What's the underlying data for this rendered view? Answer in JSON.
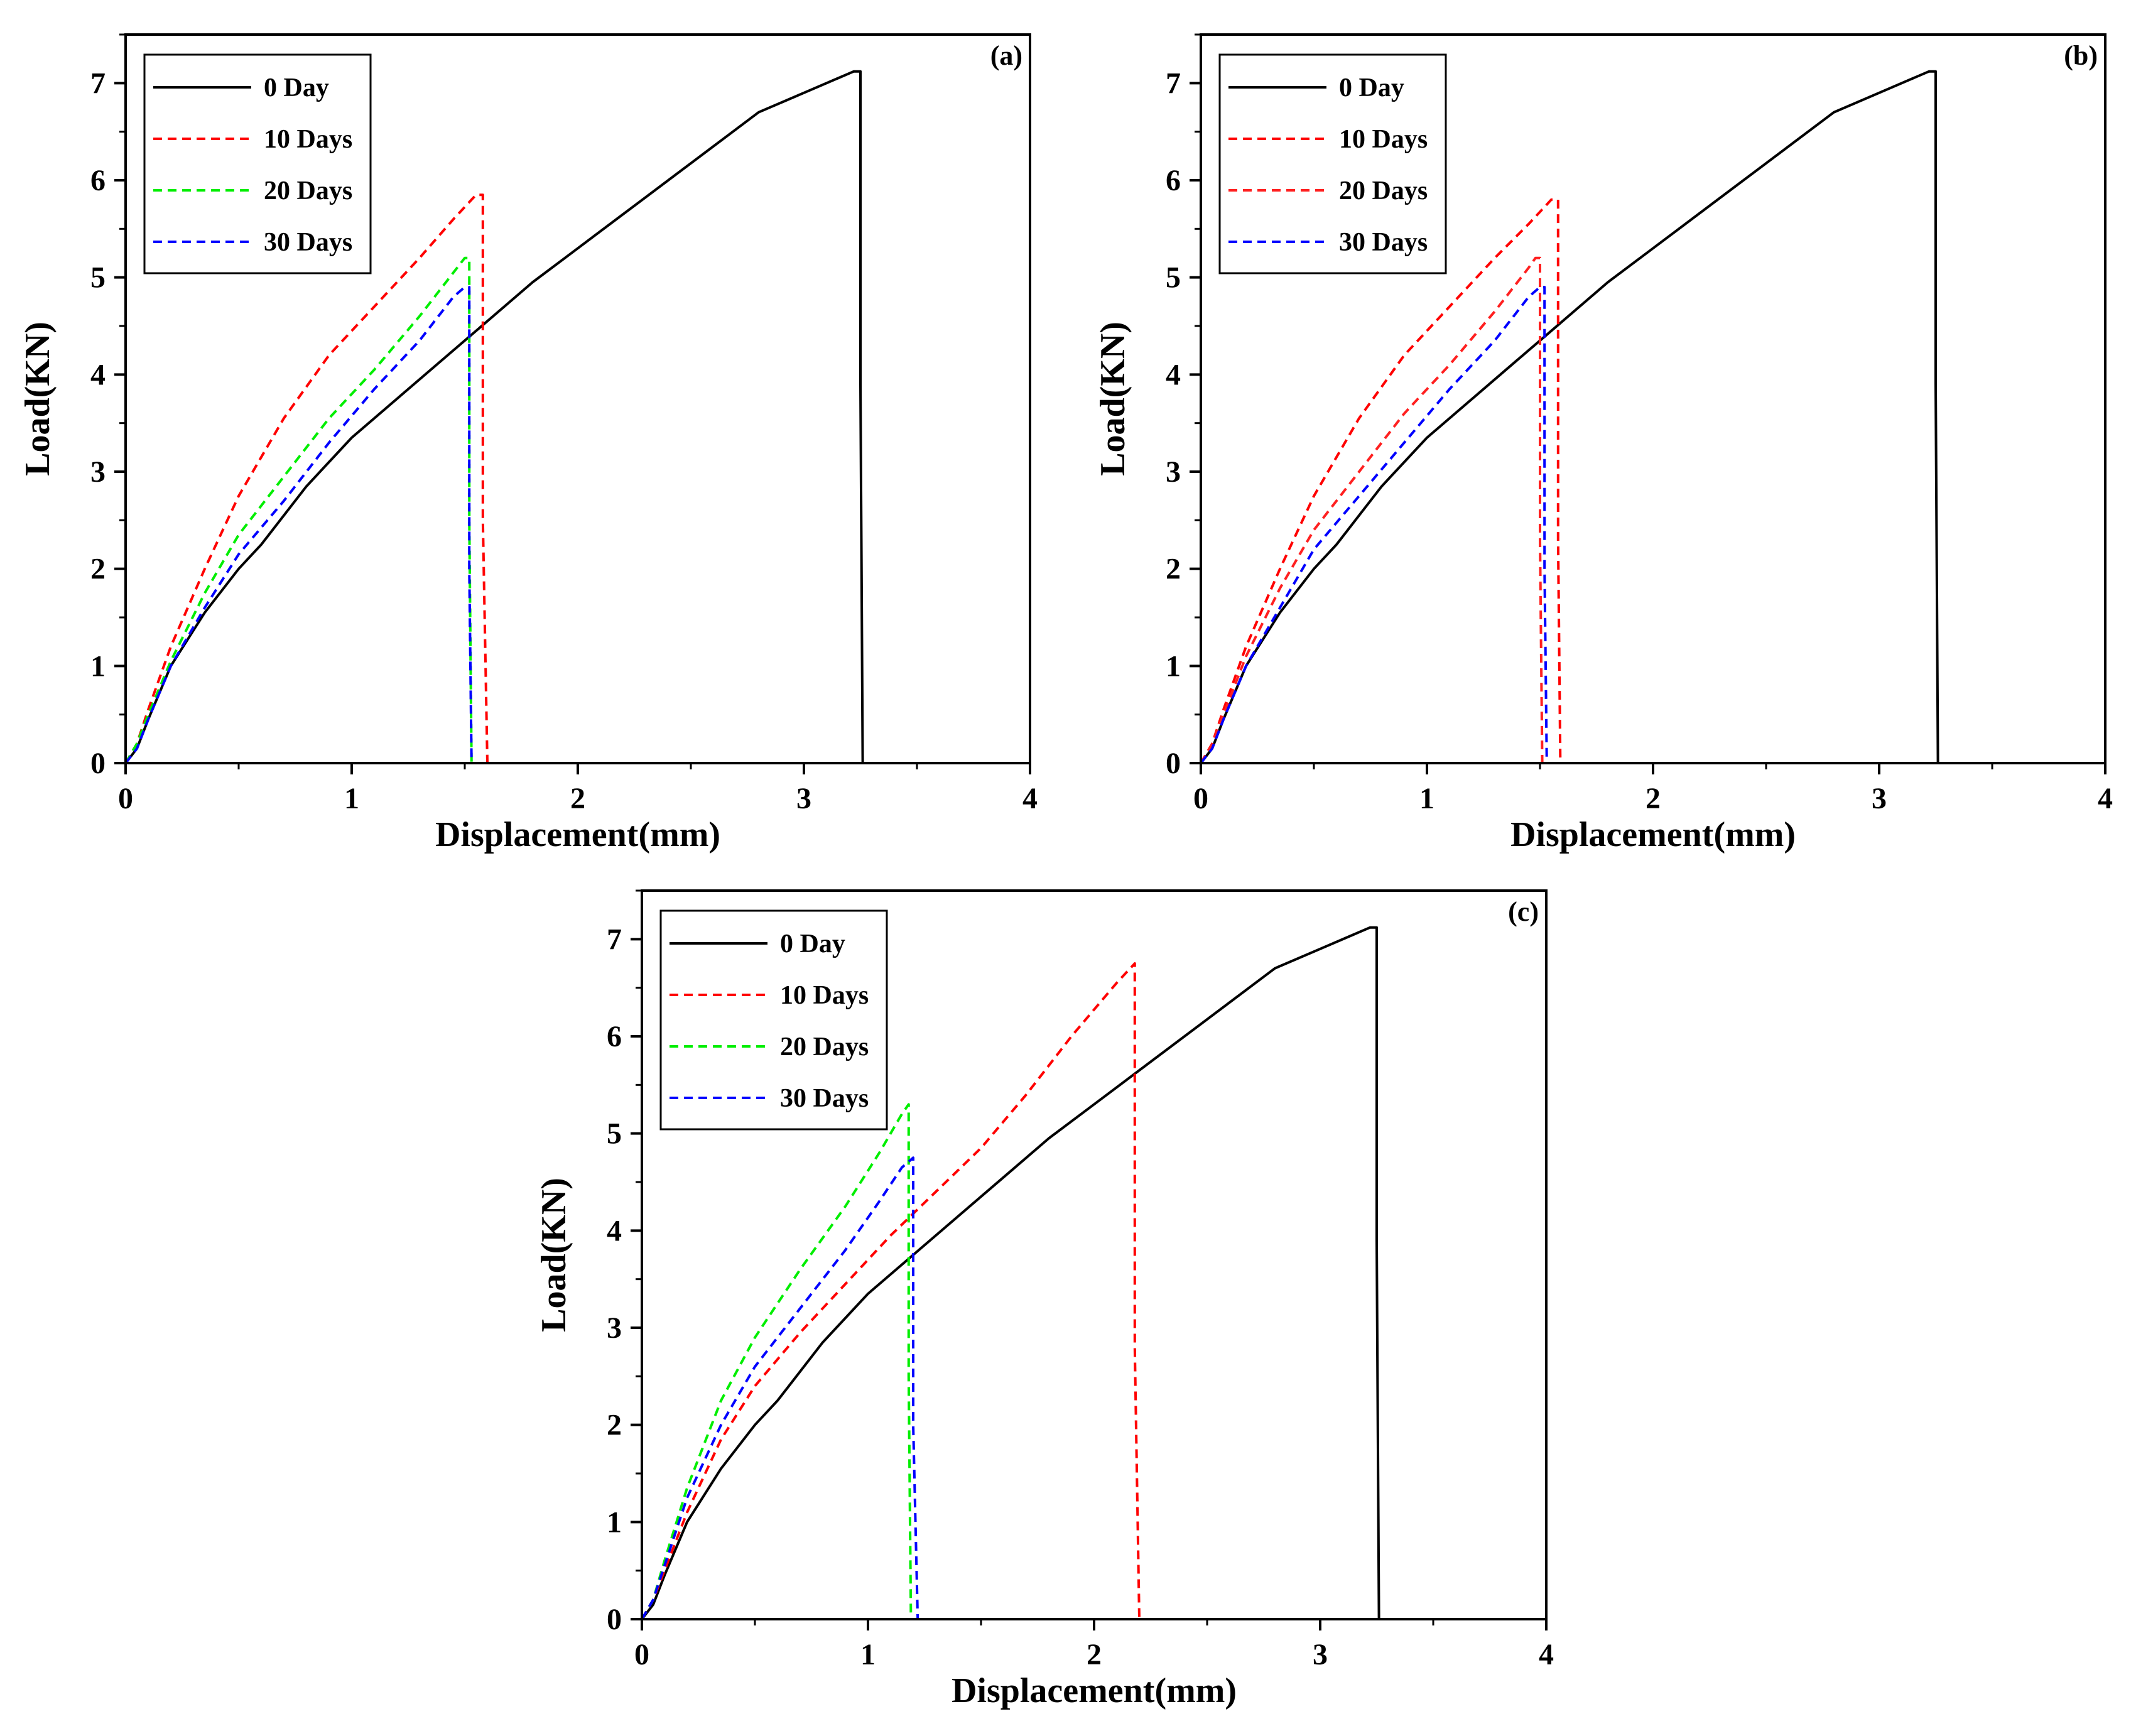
{
  "chart_data": [
    {
      "panel_label": "(a)",
      "type": "line",
      "xlabel": "Displacement(mm)",
      "ylabel": "Load(KN)",
      "xlim": [
        0,
        4
      ],
      "ylim": [
        0,
        7.5
      ],
      "xticks": [
        "0",
        "1",
        "2",
        "3",
        "4"
      ],
      "yticks": [
        "0",
        "1",
        "2",
        "3",
        "4",
        "5",
        "6",
        "7"
      ],
      "legend_position": "top-left",
      "series": [
        {
          "name": "0 Day",
          "color": "#000000",
          "dashed": false,
          "points": [
            [
              0,
              0
            ],
            [
              0.05,
              0.15
            ],
            [
              0.1,
              0.45
            ],
            [
              0.2,
              1.0
            ],
            [
              0.35,
              1.55
            ],
            [
              0.5,
              2.0
            ],
            [
              0.6,
              2.25
            ],
            [
              0.8,
              2.85
            ],
            [
              1.0,
              3.35
            ],
            [
              1.2,
              3.75
            ],
            [
              1.4,
              4.15
            ],
            [
              1.6,
              4.55
            ],
            [
              1.8,
              4.95
            ],
            [
              2.0,
              5.3
            ],
            [
              2.2,
              5.65
            ],
            [
              2.4,
              6.0
            ],
            [
              2.6,
              6.35
            ],
            [
              2.8,
              6.7
            ],
            [
              3.0,
              6.9
            ],
            [
              3.15,
              7.05
            ],
            [
              3.22,
              7.12
            ],
            [
              3.25,
              7.12
            ],
            [
              3.25,
              3.9
            ],
            [
              3.26,
              0
            ]
          ]
        },
        {
          "name": "10 Days",
          "color": "#ff0000",
          "dashed": true,
          "points": [
            [
              0,
              0
            ],
            [
              0.05,
              0.2
            ],
            [
              0.1,
              0.55
            ],
            [
              0.2,
              1.2
            ],
            [
              0.35,
              2.0
            ],
            [
              0.5,
              2.75
            ],
            [
              0.7,
              3.55
            ],
            [
              0.9,
              4.2
            ],
            [
              1.1,
              4.7
            ],
            [
              1.3,
              5.2
            ],
            [
              1.45,
              5.6
            ],
            [
              1.55,
              5.85
            ],
            [
              1.58,
              5.85
            ],
            [
              1.58,
              2.5
            ],
            [
              1.6,
              0
            ],
            [
              1.72,
              0
            ]
          ]
        },
        {
          "name": "20 Days",
          "color": "#00ee00",
          "dashed": true,
          "points": [
            [
              0,
              0
            ],
            [
              0.05,
              0.2
            ],
            [
              0.1,
              0.5
            ],
            [
              0.2,
              1.05
            ],
            [
              0.35,
              1.75
            ],
            [
              0.5,
              2.35
            ],
            [
              0.7,
              2.95
            ],
            [
              0.9,
              3.55
            ],
            [
              1.1,
              4.05
            ],
            [
              1.3,
              4.6
            ],
            [
              1.45,
              5.05
            ],
            [
              1.5,
              5.2
            ],
            [
              1.52,
              5.2
            ],
            [
              1.52,
              2.5
            ],
            [
              1.53,
              0
            ]
          ]
        },
        {
          "name": "30 Days",
          "color": "#0000ff",
          "dashed": true,
          "points": [
            [
              0,
              0
            ],
            [
              0.05,
              0.15
            ],
            [
              0.1,
              0.45
            ],
            [
              0.2,
              1.0
            ],
            [
              0.35,
              1.6
            ],
            [
              0.5,
              2.15
            ],
            [
              0.7,
              2.7
            ],
            [
              0.9,
              3.3
            ],
            [
              1.1,
              3.85
            ],
            [
              1.3,
              4.35
            ],
            [
              1.45,
              4.8
            ],
            [
              1.5,
              4.9
            ],
            [
              1.52,
              4.9
            ],
            [
              1.52,
              2.0
            ],
            [
              1.53,
              0
            ]
          ]
        }
      ]
    },
    {
      "panel_label": "(b)",
      "type": "line",
      "xlabel": "Displacement(mm)",
      "ylabel": "Load(KN)",
      "xlim": [
        0,
        4
      ],
      "ylim": [
        0,
        7.5
      ],
      "xticks": [
        "0",
        "1",
        "2",
        "3",
        "4"
      ],
      "yticks": [
        "0",
        "1",
        "2",
        "3",
        "4",
        "5",
        "6",
        "7"
      ],
      "legend_position": "top-left",
      "series": [
        {
          "name": "0 Day",
          "color": "#000000",
          "dashed": false,
          "points": [
            [
              0,
              0
            ],
            [
              0.05,
              0.15
            ],
            [
              0.1,
              0.45
            ],
            [
              0.2,
              1.0
            ],
            [
              0.35,
              1.55
            ],
            [
              0.5,
              2.0
            ],
            [
              0.6,
              2.25
            ],
            [
              0.8,
              2.85
            ],
            [
              1.0,
              3.35
            ],
            [
              1.2,
              3.75
            ],
            [
              1.4,
              4.15
            ],
            [
              1.6,
              4.55
            ],
            [
              1.8,
              4.95
            ],
            [
              2.0,
              5.3
            ],
            [
              2.2,
              5.65
            ],
            [
              2.4,
              6.0
            ],
            [
              2.6,
              6.35
            ],
            [
              2.8,
              6.7
            ],
            [
              3.0,
              6.9
            ],
            [
              3.15,
              7.05
            ],
            [
              3.22,
              7.12
            ],
            [
              3.25,
              7.12
            ],
            [
              3.25,
              3.9
            ],
            [
              3.26,
              0
            ]
          ]
        },
        {
          "name": "10 Days",
          "color": "#ff0000",
          "dashed": true,
          "points": [
            [
              0,
              0
            ],
            [
              0.05,
              0.2
            ],
            [
              0.1,
              0.55
            ],
            [
              0.2,
              1.2
            ],
            [
              0.35,
              2.0
            ],
            [
              0.5,
              2.75
            ],
            [
              0.7,
              3.55
            ],
            [
              0.9,
              4.2
            ],
            [
              1.1,
              4.7
            ],
            [
              1.3,
              5.2
            ],
            [
              1.45,
              5.55
            ],
            [
              1.55,
              5.8
            ],
            [
              1.58,
              5.8
            ],
            [
              1.58,
              2.3
            ],
            [
              1.59,
              0
            ]
          ]
        },
        {
          "name": "20 Days",
          "color": "#ff2020",
          "dashed": true,
          "points": [
            [
              0,
              0
            ],
            [
              0.05,
              0.2
            ],
            [
              0.1,
              0.5
            ],
            [
              0.2,
              1.1
            ],
            [
              0.35,
              1.8
            ],
            [
              0.5,
              2.4
            ],
            [
              0.7,
              3.0
            ],
            [
              0.9,
              3.6
            ],
            [
              1.1,
              4.1
            ],
            [
              1.3,
              4.65
            ],
            [
              1.45,
              5.1
            ],
            [
              1.48,
              5.2
            ],
            [
              1.5,
              5.2
            ],
            [
              1.5,
              2.3
            ],
            [
              1.51,
              0
            ]
          ]
        },
        {
          "name": "30 Days",
          "color": "#0000ff",
          "dashed": true,
          "points": [
            [
              0,
              0
            ],
            [
              0.05,
              0.15
            ],
            [
              0.1,
              0.45
            ],
            [
              0.2,
              1.0
            ],
            [
              0.35,
              1.6
            ],
            [
              0.5,
              2.2
            ],
            [
              0.7,
              2.75
            ],
            [
              0.9,
              3.3
            ],
            [
              1.1,
              3.85
            ],
            [
              1.3,
              4.35
            ],
            [
              1.45,
              4.8
            ],
            [
              1.5,
              4.9
            ],
            [
              1.52,
              4.9
            ],
            [
              1.52,
              2.0
            ],
            [
              1.53,
              0
            ]
          ]
        }
      ]
    },
    {
      "panel_label": "(c)",
      "type": "line",
      "xlabel": "Displacement(mm)",
      "ylabel": "Load(KN)",
      "xlim": [
        0,
        4
      ],
      "ylim": [
        0,
        7.5
      ],
      "xticks": [
        "0",
        "1",
        "2",
        "3",
        "4"
      ],
      "yticks": [
        "0",
        "1",
        "2",
        "3",
        "4",
        "5",
        "6",
        "7"
      ],
      "legend_position": "top-left",
      "series": [
        {
          "name": "0 Day",
          "color": "#000000",
          "dashed": false,
          "points": [
            [
              0,
              0
            ],
            [
              0.05,
              0.15
            ],
            [
              0.1,
              0.45
            ],
            [
              0.2,
              1.0
            ],
            [
              0.35,
              1.55
            ],
            [
              0.5,
              2.0
            ],
            [
              0.6,
              2.25
            ],
            [
              0.8,
              2.85
            ],
            [
              1.0,
              3.35
            ],
            [
              1.2,
              3.75
            ],
            [
              1.4,
              4.15
            ],
            [
              1.6,
              4.55
            ],
            [
              1.8,
              4.95
            ],
            [
              2.0,
              5.3
            ],
            [
              2.2,
              5.65
            ],
            [
              2.4,
              6.0
            ],
            [
              2.6,
              6.35
            ],
            [
              2.8,
              6.7
            ],
            [
              3.0,
              6.9
            ],
            [
              3.15,
              7.05
            ],
            [
              3.22,
              7.12
            ],
            [
              3.25,
              7.12
            ],
            [
              3.25,
              3.9
            ],
            [
              3.26,
              0
            ]
          ]
        },
        {
          "name": "10 Days",
          "color": "#ff0000",
          "dashed": true,
          "points": [
            [
              0,
              0
            ],
            [
              0.05,
              0.2
            ],
            [
              0.1,
              0.5
            ],
            [
              0.2,
              1.1
            ],
            [
              0.35,
              1.85
            ],
            [
              0.5,
              2.4
            ],
            [
              0.7,
              2.95
            ],
            [
              0.9,
              3.45
            ],
            [
              1.1,
              3.95
            ],
            [
              1.3,
              4.4
            ],
            [
              1.5,
              4.85
            ],
            [
              1.7,
              5.4
            ],
            [
              1.9,
              6.0
            ],
            [
              2.1,
              6.55
            ],
            [
              2.18,
              6.75
            ],
            [
              2.18,
              2.8
            ],
            [
              2.2,
              0
            ],
            [
              2.3,
              0
            ]
          ]
        },
        {
          "name": "20 Days",
          "color": "#00ee00",
          "dashed": true,
          "points": [
            [
              0,
              0
            ],
            [
              0.05,
              0.2
            ],
            [
              0.1,
              0.6
            ],
            [
              0.2,
              1.35
            ],
            [
              0.35,
              2.25
            ],
            [
              0.5,
              2.9
            ],
            [
              0.7,
              3.6
            ],
            [
              0.9,
              4.25
            ],
            [
              1.05,
              4.8
            ],
            [
              1.15,
              5.2
            ],
            [
              1.18,
              5.3
            ],
            [
              1.18,
              2.5
            ],
            [
              1.19,
              0
            ]
          ]
        },
        {
          "name": "30 Days",
          "color": "#0000ff",
          "dashed": true,
          "points": [
            [
              0,
              0
            ],
            [
              0.05,
              0.2
            ],
            [
              0.1,
              0.55
            ],
            [
              0.2,
              1.25
            ],
            [
              0.35,
              2.0
            ],
            [
              0.5,
              2.6
            ],
            [
              0.7,
              3.2
            ],
            [
              0.9,
              3.8
            ],
            [
              1.05,
              4.3
            ],
            [
              1.15,
              4.65
            ],
            [
              1.2,
              4.75
            ],
            [
              1.2,
              2.0
            ],
            [
              1.22,
              0
            ]
          ]
        }
      ]
    }
  ]
}
